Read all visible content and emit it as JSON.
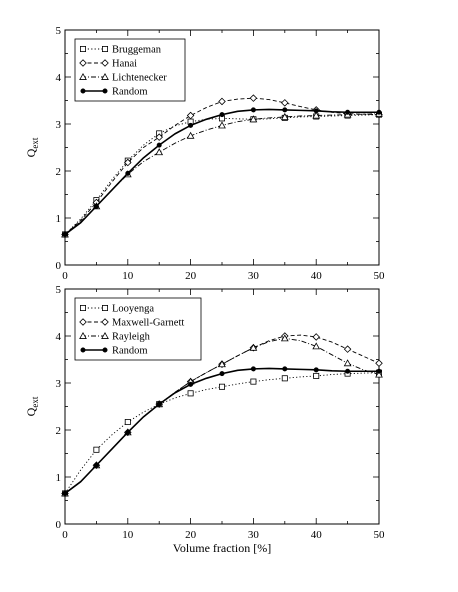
{
  "chart_data": [
    {
      "type": "line",
      "xlabel": "",
      "ylabel_main": "Q",
      "ylabel_sub": "ext",
      "xlim": [
        0,
        50
      ],
      "ylim": [
        0,
        5
      ],
      "xticks": [
        0,
        10,
        20,
        30,
        40,
        50
      ],
      "yticks": [
        0,
        1,
        2,
        3,
        4,
        5
      ],
      "legend_position": "top-left",
      "series": [
        {
          "name": "Bruggeman",
          "marker": "square",
          "dash": "dotted",
          "x": [
            0,
            5,
            10,
            15,
            20,
            25,
            30,
            35,
            40,
            45,
            50
          ],
          "y": [
            0.65,
            1.38,
            2.22,
            2.8,
            3.05,
            3.12,
            3.1,
            3.13,
            3.16,
            3.18,
            3.2
          ],
          "curve_x": [
            0,
            2.5,
            5,
            7.5,
            10,
            12.5,
            15,
            17.5,
            20,
            22.5,
            25,
            27.5,
            30,
            32.5,
            35,
            37.5,
            40,
            42.5,
            45,
            47.5,
            50
          ],
          "curve_y": [
            0.65,
            0.98,
            1.38,
            1.82,
            2.22,
            2.55,
            2.8,
            2.96,
            3.05,
            3.1,
            3.12,
            3.11,
            3.1,
            3.11,
            3.13,
            3.15,
            3.16,
            3.17,
            3.18,
            3.19,
            3.2
          ]
        },
        {
          "name": "Hanai",
          "marker": "diamond",
          "dash": "dashed",
          "x": [
            0,
            5,
            10,
            15,
            20,
            25,
            30,
            35,
            40,
            45,
            50
          ],
          "y": [
            0.65,
            1.33,
            2.18,
            2.72,
            3.18,
            3.48,
            3.55,
            3.45,
            3.3,
            3.22,
            3.2
          ],
          "curve_x": [
            0,
            2.5,
            5,
            7.5,
            10,
            12.5,
            15,
            17.5,
            20,
            22.5,
            25,
            27.5,
            30,
            32.5,
            35,
            37.5,
            40,
            42.5,
            45,
            47.5,
            50
          ],
          "curve_y": [
            0.65,
            0.95,
            1.33,
            1.77,
            2.18,
            2.5,
            2.72,
            2.97,
            3.18,
            3.35,
            3.48,
            3.53,
            3.55,
            3.52,
            3.45,
            3.37,
            3.3,
            3.25,
            3.22,
            3.21,
            3.2
          ]
        },
        {
          "name": "Lichtenecker",
          "marker": "triangle",
          "dash": "dashdot",
          "x": [
            0,
            5,
            10,
            15,
            20,
            25,
            30,
            35,
            40,
            45,
            50
          ],
          "y": [
            0.65,
            1.25,
            1.93,
            2.4,
            2.75,
            2.97,
            3.1,
            3.15,
            3.18,
            3.2,
            3.22
          ],
          "curve_x": [
            0,
            2.5,
            5,
            7.5,
            10,
            12.5,
            15,
            17.5,
            20,
            22.5,
            25,
            27.5,
            30,
            32.5,
            35,
            37.5,
            40,
            42.5,
            45,
            47.5,
            50
          ],
          "curve_y": [
            0.65,
            0.92,
            1.25,
            1.6,
            1.93,
            2.2,
            2.4,
            2.59,
            2.75,
            2.87,
            2.97,
            3.05,
            3.1,
            3.13,
            3.15,
            3.17,
            3.18,
            3.19,
            3.2,
            3.21,
            3.22
          ]
        },
        {
          "name": "Random",
          "marker": "circle",
          "dash": "solid",
          "x": [
            0,
            5,
            10,
            15,
            20,
            25,
            30,
            35,
            40,
            45,
            50
          ],
          "y": [
            0.65,
            1.25,
            1.95,
            2.55,
            2.97,
            3.2,
            3.3,
            3.3,
            3.28,
            3.25,
            3.25
          ],
          "curve_x": [
            0,
            2.5,
            5,
            7.5,
            10,
            12.5,
            15,
            17.5,
            20,
            22.5,
            25,
            27.5,
            30,
            32.5,
            35,
            37.5,
            40,
            42.5,
            45,
            47.5,
            50
          ],
          "curve_y": [
            0.65,
            0.9,
            1.25,
            1.6,
            1.95,
            2.28,
            2.55,
            2.79,
            2.97,
            3.1,
            3.2,
            3.27,
            3.3,
            3.31,
            3.3,
            3.29,
            3.28,
            3.26,
            3.25,
            3.25,
            3.25
          ]
        }
      ]
    },
    {
      "type": "line",
      "xlabel": "Volume fraction [%]",
      "ylabel_main": "Q",
      "ylabel_sub": "ext",
      "xlim": [
        0,
        50
      ],
      "ylim": [
        0,
        5
      ],
      "xticks": [
        0,
        10,
        20,
        30,
        40,
        50
      ],
      "yticks": [
        0,
        1,
        2,
        3,
        4,
        5
      ],
      "legend_position": "top-left",
      "series": [
        {
          "name": "Looyenga",
          "marker": "square",
          "dash": "dotted",
          "x": [
            0,
            5,
            10,
            15,
            20,
            25,
            30,
            35,
            40,
            45,
            50
          ],
          "y": [
            0.65,
            1.58,
            2.17,
            2.55,
            2.78,
            2.92,
            3.03,
            3.1,
            3.15,
            3.2,
            3.22
          ],
          "curve_x": [
            0,
            2.5,
            5,
            7.5,
            10,
            12.5,
            15,
            17.5,
            20,
            22.5,
            25,
            27.5,
            30,
            32.5,
            35,
            37.5,
            40,
            42.5,
            45,
            47.5,
            50
          ],
          "curve_y": [
            0.65,
            1.15,
            1.58,
            1.9,
            2.17,
            2.38,
            2.55,
            2.68,
            2.78,
            2.86,
            2.92,
            2.98,
            3.03,
            3.07,
            3.1,
            3.13,
            3.15,
            3.18,
            3.2,
            3.21,
            3.22
          ]
        },
        {
          "name": "Maxwell-Garnett",
          "marker": "diamond",
          "dash": "dashed",
          "x": [
            0,
            5,
            10,
            15,
            20,
            25,
            30,
            35,
            40,
            45,
            50
          ],
          "y": [
            0.65,
            1.25,
            1.95,
            2.55,
            3.03,
            3.4,
            3.75,
            4.0,
            3.98,
            3.72,
            3.42
          ],
          "curve_x": [
            0,
            2.5,
            5,
            7.5,
            10,
            12.5,
            15,
            17.5,
            20,
            22.5,
            25,
            27.5,
            30,
            32.5,
            35,
            37.5,
            40,
            42.5,
            45,
            47.5,
            50
          ],
          "curve_y": [
            0.65,
            0.9,
            1.25,
            1.6,
            1.95,
            2.28,
            2.55,
            2.8,
            3.03,
            3.22,
            3.4,
            3.58,
            3.75,
            3.9,
            4.0,
            4.02,
            3.98,
            3.87,
            3.72,
            3.57,
            3.42
          ]
        },
        {
          "name": "Rayleigh",
          "marker": "triangle",
          "dash": "dashdot",
          "x": [
            0,
            5,
            10,
            15,
            20,
            25,
            30,
            35,
            40,
            45,
            50
          ],
          "y": [
            0.65,
            1.25,
            1.95,
            2.55,
            3.03,
            3.4,
            3.75,
            3.95,
            3.78,
            3.42,
            3.18
          ],
          "curve_x": [
            0,
            2.5,
            5,
            7.5,
            10,
            12.5,
            15,
            17.5,
            20,
            22.5,
            25,
            27.5,
            30,
            32.5,
            35,
            37.5,
            40,
            42.5,
            45,
            47.5,
            50
          ],
          "curve_y": [
            0.65,
            0.9,
            1.25,
            1.6,
            1.95,
            2.28,
            2.55,
            2.8,
            3.03,
            3.22,
            3.4,
            3.58,
            3.75,
            3.88,
            3.95,
            3.9,
            3.78,
            3.6,
            3.42,
            3.28,
            3.18
          ]
        },
        {
          "name": "Random",
          "marker": "circle",
          "dash": "solid",
          "x": [
            0,
            5,
            10,
            15,
            20,
            25,
            30,
            35,
            40,
            45,
            50
          ],
          "y": [
            0.65,
            1.25,
            1.95,
            2.55,
            2.97,
            3.2,
            3.3,
            3.3,
            3.28,
            3.25,
            3.25
          ],
          "curve_x": [
            0,
            2.5,
            5,
            7.5,
            10,
            12.5,
            15,
            17.5,
            20,
            22.5,
            25,
            27.5,
            30,
            32.5,
            35,
            37.5,
            40,
            42.5,
            45,
            47.5,
            50
          ],
          "curve_y": [
            0.65,
            0.9,
            1.25,
            1.6,
            1.95,
            2.28,
            2.55,
            2.79,
            2.97,
            3.1,
            3.2,
            3.27,
            3.3,
            3.31,
            3.3,
            3.29,
            3.28,
            3.26,
            3.25,
            3.25,
            3.25
          ]
        }
      ]
    }
  ]
}
